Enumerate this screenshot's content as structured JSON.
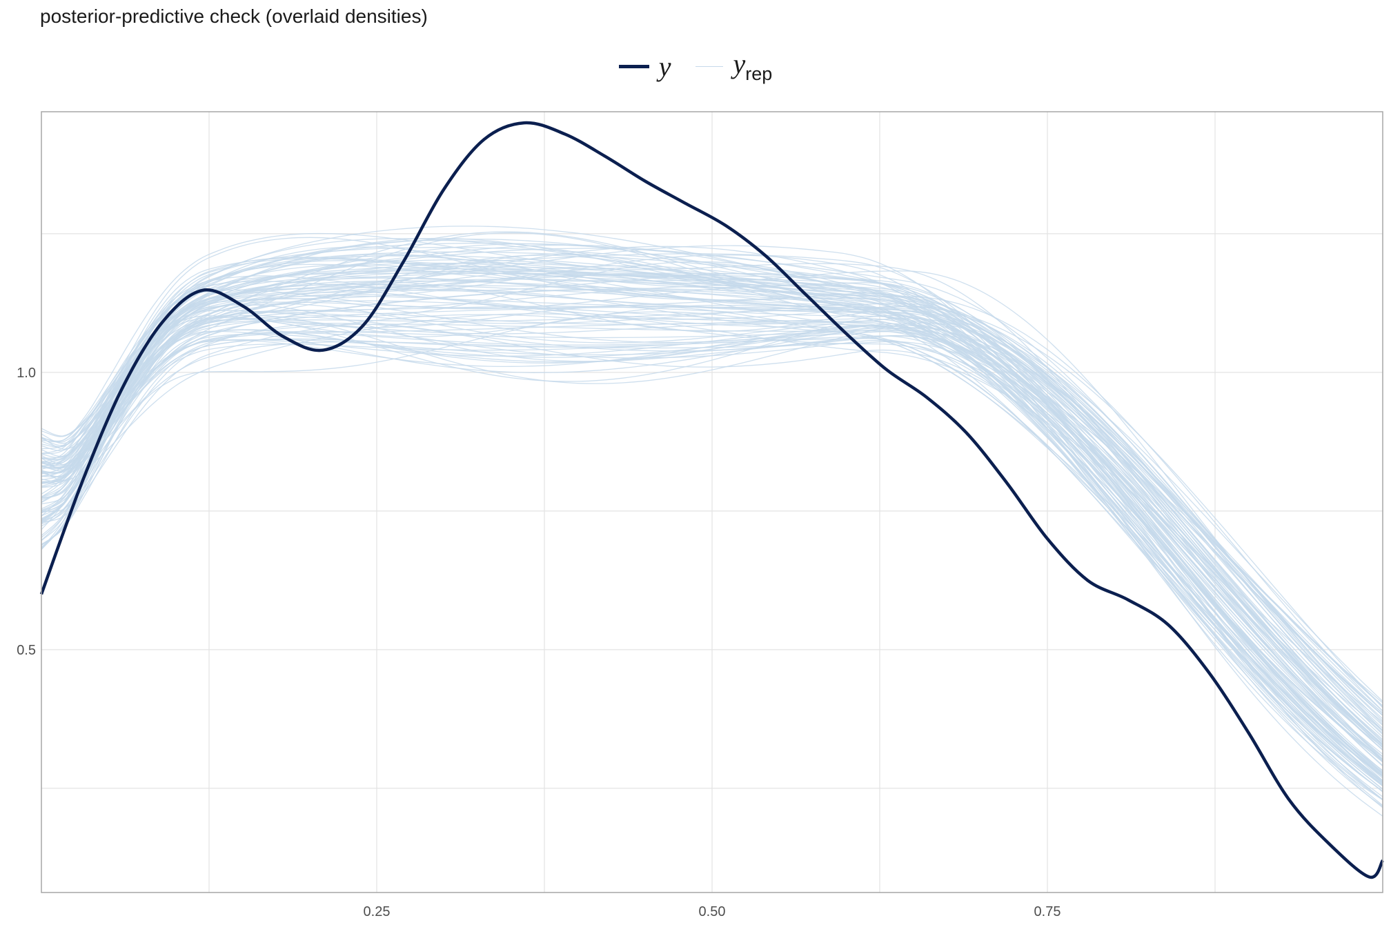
{
  "chart_data": {
    "type": "line",
    "title": "posterior-predictive check (overlaid densities)",
    "xlabel": "",
    "ylabel": "",
    "xlim": [
      0,
      1
    ],
    "ylim": [
      0.062,
      1.47
    ],
    "x_ticks": [
      0.25,
      0.5,
      0.75
    ],
    "x_tick_labels": [
      "0.25",
      "0.50",
      "0.75"
    ],
    "y_ticks": [
      0.5,
      1.0
    ],
    "y_tick_labels": [
      "0.5",
      "1.0"
    ],
    "grid": true,
    "legend_position": "top",
    "legend": [
      {
        "key": "y",
        "label": "y",
        "sub": ""
      },
      {
        "key": "yrep",
        "label": "y",
        "sub": "rep"
      }
    ],
    "colors": {
      "y": "#0b1f4f",
      "yrep": "#c6d9eb",
      "grid": "#e3e3e3",
      "panel_border": "#a6a6a6"
    },
    "series": [
      {
        "name": "y",
        "x": [
          0.0,
          0.03,
          0.06,
          0.09,
          0.12,
          0.15,
          0.18,
          0.21,
          0.24,
          0.27,
          0.3,
          0.33,
          0.36,
          0.39,
          0.42,
          0.45,
          0.48,
          0.51,
          0.54,
          0.57,
          0.6,
          0.63,
          0.66,
          0.69,
          0.72,
          0.75,
          0.78,
          0.81,
          0.84,
          0.87,
          0.9,
          0.93,
          0.96,
          0.99,
          1.0
        ],
        "values": [
          0.6,
          0.8,
          0.97,
          1.09,
          1.148,
          1.12,
          1.065,
          1.04,
          1.085,
          1.2,
          1.33,
          1.42,
          1.45,
          1.43,
          1.39,
          1.345,
          1.305,
          1.265,
          1.21,
          1.14,
          1.07,
          1.005,
          0.955,
          0.89,
          0.8,
          0.7,
          0.625,
          0.59,
          0.545,
          0.46,
          0.35,
          0.23,
          0.15,
          0.09,
          0.12
        ]
      }
    ],
    "yrep_count": 100
  }
}
